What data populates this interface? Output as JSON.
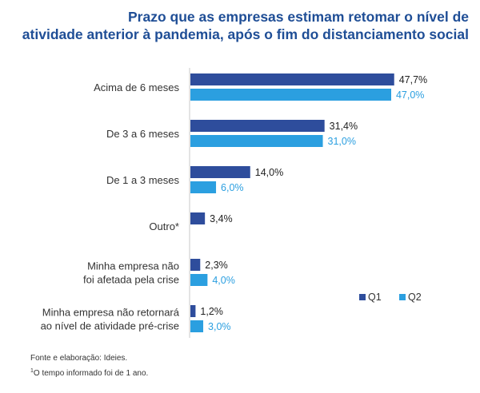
{
  "title_line1": "Prazo que as empresas estimam retomar o nível de",
  "title_line2": "atividade anterior à pandemia, após o fim do distanciamento social",
  "footnote_source": "Fonte e elaboração: Ideies.",
  "footnote_sup": "1",
  "footnote_note": "O tempo informado foi de 1 ano.",
  "colors": {
    "q1": "#2e4d9c",
    "q2": "#2b9fe0",
    "title": "#1f4e96",
    "axis": "#c8c8c8"
  },
  "chart_data": {
    "type": "bar",
    "orientation": "horizontal",
    "title": "Prazo que as empresas estimam retomar o nível de atividade anterior à pandemia, após o fim do distanciamento social",
    "categories": [
      [
        "Acima de 6 meses"
      ],
      [
        "De 3 a 6 meses"
      ],
      [
        "De 1 a 3 meses"
      ],
      [
        "Outro*"
      ],
      [
        "Minha empresa não",
        "foi afetada pela crise"
      ],
      [
        "Minha empresa não retornará",
        "ao nível de atividade pré-crise"
      ]
    ],
    "series": [
      {
        "name": "Q1",
        "values": [
          47.7,
          31.4,
          14.0,
          3.4,
          2.3,
          1.2
        ],
        "labels": [
          "47,7%",
          "31,4%",
          "14,0%",
          "3,4%",
          "2,3%",
          "1,2%"
        ]
      },
      {
        "name": "Q2",
        "values": [
          47.0,
          31.0,
          6.0,
          null,
          4.0,
          3.0
        ],
        "labels": [
          "47,0%",
          "31,0%",
          "6,0%",
          null,
          "4,0%",
          "3,0%"
        ]
      }
    ],
    "xlim": [
      0,
      50
    ],
    "legend": "bottom-right",
    "grid": false
  }
}
